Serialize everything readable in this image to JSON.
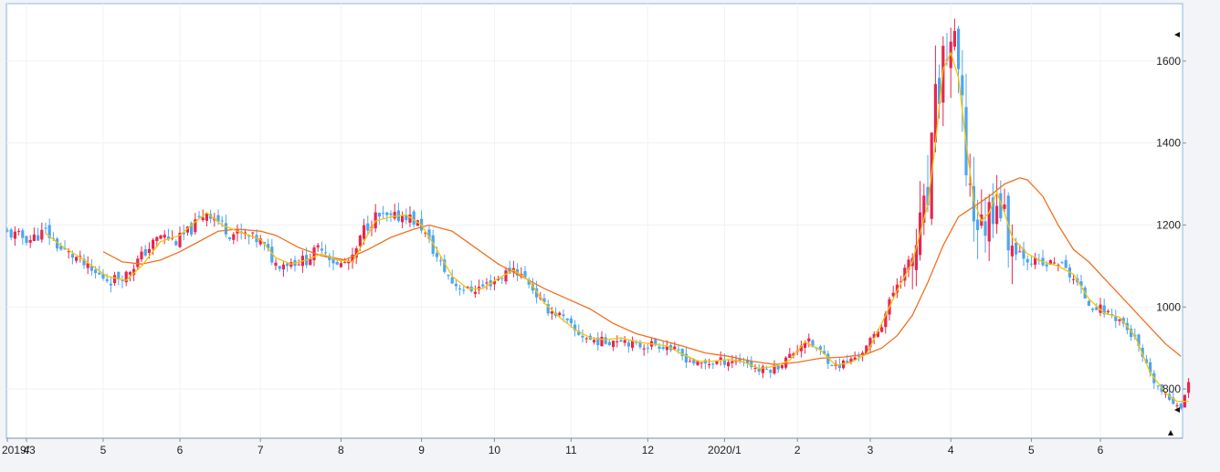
{
  "chart_data": {
    "type": "candlestick",
    "title": "",
    "xlabel": "",
    "ylabel": "",
    "x_tick_labels": [
      "2019/3",
      "4",
      "5",
      "6",
      "7",
      "8",
      "9",
      "10",
      "11",
      "12",
      "2020/1",
      "2",
      "3",
      "4",
      "5",
      "6"
    ],
    "y_ticks": [
      800,
      1000,
      1200,
      1400,
      1600
    ],
    "ylim": [
      680,
      1740
    ],
    "grid": true,
    "colors": {
      "up": "#e8264f",
      "down": "#4da6f0",
      "ma_short": "#f5c400",
      "ma_long": "#f07020",
      "axis": "#7f8fa6",
      "plot_border": "#8fb4e8",
      "background": "#ffffff"
    },
    "moving_averages": [
      {
        "name": "",
        "color_key": "ma_short"
      },
      {
        "name": "",
        "color_key": "ma_long"
      }
    ],
    "month_starts": [
      {
        "label": "2019/3",
        "week": 0
      },
      {
        "label": "4",
        "week": 5
      },
      {
        "label": "5",
        "week": 25
      },
      {
        "label": "6",
        "week": 45
      },
      {
        "label": "7",
        "week": 66
      },
      {
        "label": "8",
        "week": 87
      },
      {
        "label": "9",
        "week": 108
      },
      {
        "label": "10",
        "week": 127
      },
      {
        "label": "11",
        "week": 147
      },
      {
        "label": "12",
        "week": 167
      },
      {
        "label": "2020/1",
        "week": 187
      },
      {
        "label": "2",
        "week": 206
      },
      {
        "label": "3",
        "week": 225
      },
      {
        "label": "4",
        "week": 246
      },
      {
        "label": "5",
        "week": 267
      },
      {
        "label": "6",
        "week": 285
      }
    ],
    "close_path": [
      [
        0,
        1180
      ],
      [
        6,
        1165
      ],
      [
        10,
        1185
      ],
      [
        14,
        1140
      ],
      [
        18,
        1120
      ],
      [
        22,
        1085
      ],
      [
        27,
        1065
      ],
      [
        31,
        1080
      ],
      [
        36,
        1135
      ],
      [
        40,
        1175
      ],
      [
        44,
        1160
      ],
      [
        48,
        1190
      ],
      [
        52,
        1235
      ],
      [
        55,
        1210
      ],
      [
        58,
        1180
      ],
      [
        62,
        1175
      ],
      [
        66,
        1160
      ],
      [
        70,
        1105
      ],
      [
        74,
        1110
      ],
      [
        78,
        1115
      ],
      [
        82,
        1150
      ],
      [
        86,
        1100
      ],
      [
        90,
        1115
      ],
      [
        93,
        1190
      ],
      [
        96,
        1220
      ],
      [
        100,
        1215
      ],
      [
        104,
        1225
      ],
      [
        108,
        1195
      ],
      [
        112,
        1120
      ],
      [
        116,
        1060
      ],
      [
        120,
        1040
      ],
      [
        124,
        1050
      ],
      [
        128,
        1070
      ],
      [
        132,
        1095
      ],
      [
        136,
        1060
      ],
      [
        140,
        1000
      ],
      [
        144,
        980
      ],
      [
        148,
        940
      ],
      [
        152,
        920
      ],
      [
        156,
        915
      ],
      [
        160,
        925
      ],
      [
        164,
        905
      ],
      [
        168,
        910
      ],
      [
        172,
        905
      ],
      [
        176,
        880
      ],
      [
        180,
        860
      ],
      [
        184,
        865
      ],
      [
        188,
        870
      ],
      [
        192,
        870
      ],
      [
        196,
        845
      ],
      [
        200,
        850
      ],
      [
        204,
        880
      ],
      [
        208,
        920
      ],
      [
        212,
        890
      ],
      [
        216,
        855
      ],
      [
        220,
        870
      ],
      [
        224,
        900
      ],
      [
        228,
        960
      ],
      [
        232,
        1060
      ],
      [
        236,
        1120
      ],
      [
        240,
        1260
      ],
      [
        242,
        1480
      ],
      [
        244,
        1600
      ],
      [
        246,
        1650
      ],
      [
        248,
        1560
      ],
      [
        250,
        1350
      ],
      [
        252,
        1230
      ],
      [
        254,
        1190
      ],
      [
        256,
        1230
      ],
      [
        258,
        1280
      ],
      [
        260,
        1210
      ],
      [
        262,
        1150
      ],
      [
        266,
        1120
      ],
      [
        270,
        1100
      ],
      [
        274,
        1110
      ],
      [
        278,
        1070
      ],
      [
        282,
        1010
      ],
      [
        286,
        990
      ],
      [
        290,
        970
      ],
      [
        294,
        920
      ],
      [
        298,
        830
      ],
      [
        302,
        780
      ],
      [
        304,
        770
      ],
      [
        306,
        760
      ],
      [
        308,
        810
      ]
    ],
    "ma_short_path": [
      [
        10,
        1180
      ],
      [
        14,
        1150
      ],
      [
        20,
        1115
      ],
      [
        26,
        1075
      ],
      [
        31,
        1065
      ],
      [
        35,
        1100
      ],
      [
        40,
        1160
      ],
      [
        45,
        1175
      ],
      [
        48,
        1200
      ],
      [
        52,
        1230
      ],
      [
        56,
        1200
      ],
      [
        60,
        1185
      ],
      [
        66,
        1165
      ],
      [
        70,
        1120
      ],
      [
        74,
        1105
      ],
      [
        78,
        1115
      ],
      [
        82,
        1130
      ],
      [
        86,
        1115
      ],
      [
        90,
        1110
      ],
      [
        93,
        1160
      ],
      [
        96,
        1210
      ],
      [
        100,
        1220
      ],
      [
        104,
        1225
      ],
      [
        108,
        1200
      ],
      [
        112,
        1140
      ],
      [
        116,
        1075
      ],
      [
        120,
        1045
      ],
      [
        124,
        1045
      ],
      [
        128,
        1070
      ],
      [
        132,
        1090
      ],
      [
        136,
        1065
      ],
      [
        140,
        1010
      ],
      [
        144,
        975
      ],
      [
        148,
        945
      ],
      [
        152,
        925
      ],
      [
        156,
        920
      ],
      [
        160,
        925
      ],
      [
        164,
        915
      ],
      [
        168,
        910
      ],
      [
        172,
        905
      ],
      [
        176,
        885
      ],
      [
        180,
        868
      ],
      [
        184,
        868
      ],
      [
        188,
        872
      ],
      [
        192,
        866
      ],
      [
        196,
        850
      ],
      [
        200,
        855
      ],
      [
        204,
        870
      ],
      [
        208,
        915
      ],
      [
        212,
        895
      ],
      [
        216,
        858
      ],
      [
        220,
        865
      ],
      [
        224,
        885
      ],
      [
        228,
        960
      ],
      [
        232,
        1040
      ],
      [
        236,
        1110
      ],
      [
        240,
        1250
      ],
      [
        242,
        1400
      ],
      [
        244,
        1580
      ],
      [
        246,
        1620
      ],
      [
        248,
        1560
      ],
      [
        250,
        1400
      ],
      [
        252,
        1260
      ],
      [
        254,
        1210
      ],
      [
        256,
        1230
      ],
      [
        258,
        1280
      ],
      [
        260,
        1230
      ],
      [
        262,
        1170
      ],
      [
        266,
        1130
      ],
      [
        270,
        1110
      ],
      [
        274,
        1100
      ],
      [
        278,
        1080
      ],
      [
        282,
        1020
      ],
      [
        286,
        985
      ],
      [
        290,
        975
      ],
      [
        294,
        930
      ],
      [
        298,
        840
      ],
      [
        302,
        790
      ],
      [
        305,
        770
      ],
      [
        308,
        770
      ]
    ],
    "ma_long_path": [
      [
        25,
        1135
      ],
      [
        30,
        1110
      ],
      [
        35,
        1105
      ],
      [
        40,
        1115
      ],
      [
        45,
        1135
      ],
      [
        50,
        1160
      ],
      [
        55,
        1185
      ],
      [
        60,
        1190
      ],
      [
        66,
        1185
      ],
      [
        70,
        1175
      ],
      [
        76,
        1145
      ],
      [
        82,
        1125
      ],
      [
        88,
        1115
      ],
      [
        94,
        1140
      ],
      [
        100,
        1170
      ],
      [
        106,
        1190
      ],
      [
        110,
        1200
      ],
      [
        116,
        1185
      ],
      [
        122,
        1145
      ],
      [
        128,
        1105
      ],
      [
        134,
        1075
      ],
      [
        140,
        1045
      ],
      [
        146,
        1020
      ],
      [
        152,
        995
      ],
      [
        158,
        960
      ],
      [
        164,
        935
      ],
      [
        170,
        920
      ],
      [
        176,
        905
      ],
      [
        182,
        888
      ],
      [
        188,
        880
      ],
      [
        194,
        868
      ],
      [
        200,
        860
      ],
      [
        206,
        865
      ],
      [
        212,
        875
      ],
      [
        218,
        878
      ],
      [
        224,
        885
      ],
      [
        228,
        900
      ],
      [
        232,
        930
      ],
      [
        236,
        980
      ],
      [
        240,
        1060
      ],
      [
        244,
        1150
      ],
      [
        248,
        1220
      ],
      [
        252,
        1245
      ],
      [
        256,
        1270
      ],
      [
        260,
        1300
      ],
      [
        264,
        1315
      ],
      [
        266,
        1310
      ],
      [
        270,
        1270
      ],
      [
        274,
        1200
      ],
      [
        278,
        1140
      ],
      [
        282,
        1110
      ],
      [
        286,
        1070
      ],
      [
        290,
        1030
      ],
      [
        294,
        990
      ],
      [
        298,
        950
      ],
      [
        302,
        910
      ],
      [
        306,
        880
      ]
    ]
  }
}
